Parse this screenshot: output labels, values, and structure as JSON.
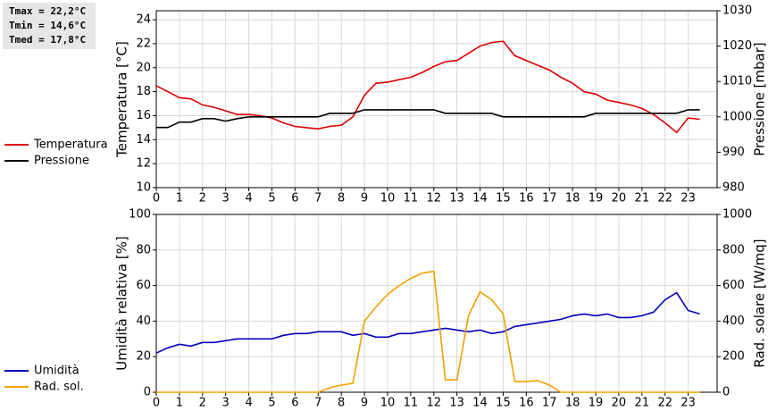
{
  "chart_data": [
    {
      "type": "line",
      "annotations": [
        "Tmax = 22,2°C",
        "Tmin = 14,6°C",
        "Tmed = 17,8°C"
      ],
      "ylabel": "Temperatura [°C]",
      "y2label": "Pressione [mbar]",
      "x": [
        0,
        0.5,
        1,
        1.5,
        2,
        2.5,
        3,
        3.5,
        4,
        4.5,
        5,
        5.5,
        6,
        6.5,
        7,
        7.5,
        8,
        8.5,
        9,
        9.5,
        10,
        10.5,
        11,
        11.5,
        12,
        12.5,
        13,
        13.5,
        14,
        14.5,
        15,
        15.5,
        16,
        16.5,
        17,
        17.5,
        18,
        18.5,
        19,
        19.5,
        20,
        20.5,
        21,
        21.5,
        22,
        22.5,
        23,
        23.5
      ],
      "xlim": [
        0,
        24.25
      ],
      "xticks": [
        0,
        1,
        2,
        3,
        4,
        5,
        6,
        7,
        8,
        9,
        10,
        11,
        12,
        13,
        14,
        15,
        16,
        17,
        18,
        19,
        20,
        21,
        22,
        23
      ],
      "ylim": [
        10,
        24.75
      ],
      "yticks": [
        10,
        12,
        14,
        16,
        18,
        20,
        22,
        24
      ],
      "y2lim": [
        980,
        1030
      ],
      "y2ticks": [
        980,
        990,
        1000,
        1010,
        1020,
        1030
      ],
      "grid": true,
      "legend": "left",
      "series": [
        {
          "name": "Temperatura",
          "color": "#dd0000",
          "values": [
            18.5,
            18.0,
            17.5,
            17.4,
            16.9,
            16.7,
            16.4,
            16.1,
            16.1,
            16.0,
            15.8,
            15.4,
            15.1,
            15.0,
            14.9,
            15.1,
            15.2,
            15.9,
            17.7,
            18.7,
            18.8,
            19.0,
            19.2,
            19.6,
            20.1,
            20.5,
            20.6,
            21.2,
            21.8,
            22.1,
            22.2,
            21.0,
            20.6,
            20.2,
            19.8,
            19.2,
            18.7,
            18.0,
            17.8,
            17.3,
            17.1,
            16.9,
            16.6,
            16.1,
            15.4,
            14.6,
            15.8,
            15.7
          ]
        },
        {
          "name": "Pressione",
          "color": "#000000",
          "axis": "y2",
          "values": [
            997,
            997,
            998.5,
            998.5,
            999.5,
            999.5,
            998.8,
            999.5,
            1000,
            1000,
            1000,
            1000,
            1000,
            1000,
            1000,
            1001,
            1001,
            1001,
            1002,
            1002,
            1002,
            1002,
            1002,
            1002,
            1002,
            1001,
            1001,
            1001,
            1001,
            1001,
            1000,
            1000,
            1000,
            1000,
            1000,
            1000,
            1000,
            1000,
            1001,
            1001,
            1001,
            1001,
            1001,
            1001,
            1001,
            1001,
            1002,
            1002
          ]
        }
      ]
    },
    {
      "type": "line",
      "ylabel": "Umidità relativa [%]",
      "y2label": "Rad. solare [W/mq]",
      "x": [
        0,
        0.5,
        1,
        1.5,
        2,
        2.5,
        3,
        3.5,
        4,
        4.5,
        5,
        5.5,
        6,
        6.5,
        7,
        7.5,
        8,
        8.5,
        9,
        9.5,
        10,
        10.5,
        11,
        11.5,
        12,
        12.5,
        13,
        13.5,
        14,
        14.5,
        15,
        15.5,
        16,
        16.5,
        17,
        17.5,
        18,
        18.5,
        19,
        19.5,
        20,
        20.5,
        21,
        21.5,
        22,
        22.5,
        23,
        23.5
      ],
      "xlim": [
        0,
        24.25
      ],
      "xticks": [
        0,
        1,
        2,
        3,
        4,
        5,
        6,
        7,
        8,
        9,
        10,
        11,
        12,
        13,
        14,
        15,
        16,
        17,
        18,
        19,
        20,
        21,
        22,
        23
      ],
      "ylim": [
        0,
        100
      ],
      "yticks": [
        0,
        20,
        40,
        60,
        80,
        100
      ],
      "y2lim": [
        0,
        1000
      ],
      "y2ticks": [
        0,
        200,
        400,
        600,
        800,
        1000
      ],
      "grid": true,
      "legend": "left",
      "series": [
        {
          "name": "Umidità",
          "color": "#0000bb",
          "values": [
            22,
            25,
            27,
            26,
            28,
            28,
            29,
            30,
            30,
            30,
            30,
            32,
            33,
            33,
            34,
            34,
            34,
            32,
            33,
            31,
            31,
            33,
            33,
            34,
            35,
            36,
            35,
            34,
            35,
            33,
            34,
            37,
            38,
            39,
            40,
            41,
            43,
            44,
            43,
            44,
            42,
            42,
            43,
            45,
            52,
            56,
            46,
            44
          ]
        },
        {
          "name": "Rad. sol.",
          "color": "#f0a000",
          "axis": "y2",
          "values": [
            0,
            0,
            0,
            0,
            0,
            0,
            0,
            0,
            0,
            0,
            0,
            0,
            0,
            0,
            0,
            25,
            40,
            50,
            400,
            480,
            550,
            600,
            640,
            670,
            680,
            70,
            70,
            430,
            565,
            520,
            440,
            60,
            60,
            65,
            40,
            0,
            0,
            0,
            0,
            0,
            0,
            0,
            0,
            0,
            0,
            0,
            0,
            0
          ]
        }
      ]
    }
  ]
}
